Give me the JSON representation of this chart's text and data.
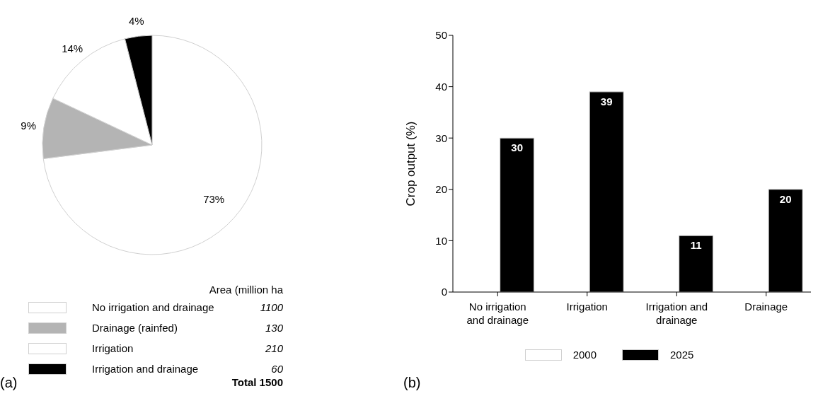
{
  "chart_data": [
    {
      "type": "pie",
      "categories": [
        "No irrigation and drainage",
        "Drainage (rainfed)",
        "Irrigation",
        "Irrigation and drainage"
      ],
      "values": [
        73,
        9,
        14,
        4
      ],
      "colors": [
        "#ffffff",
        "#b4b4b4",
        "#ffffff",
        "#000000"
      ],
      "value_labels": [
        "73%",
        "9%",
        "14%",
        "4%"
      ],
      "legend": "bottom",
      "legend_title": "Area (million ha",
      "annotations": [
        "1100",
        "130",
        "210",
        "60",
        "Total 1500",
        "(a)"
      ]
    },
    {
      "type": "bar",
      "categories": [
        "No irrigation and drainage",
        "Irrigation",
        "Irrigation and drainage",
        "Drainage"
      ],
      "series": [
        {
          "name": "2000",
          "color": "#ffffff",
          "values": [
            0,
            0,
            0,
            0
          ]
        },
        {
          "name": "2025",
          "color": "#000000",
          "values": [
            30,
            39,
            11,
            20
          ],
          "value_labels": [
            "30",
            "39",
            "11",
            "20"
          ]
        }
      ],
      "ylim": [
        0,
        50
      ],
      "yticks": [
        0,
        10,
        20,
        30,
        40,
        50
      ],
      "ylabel": "Crop output (%)",
      "legend": "bottom",
      "grid": false,
      "annotations": [
        "(b)"
      ]
    }
  ]
}
